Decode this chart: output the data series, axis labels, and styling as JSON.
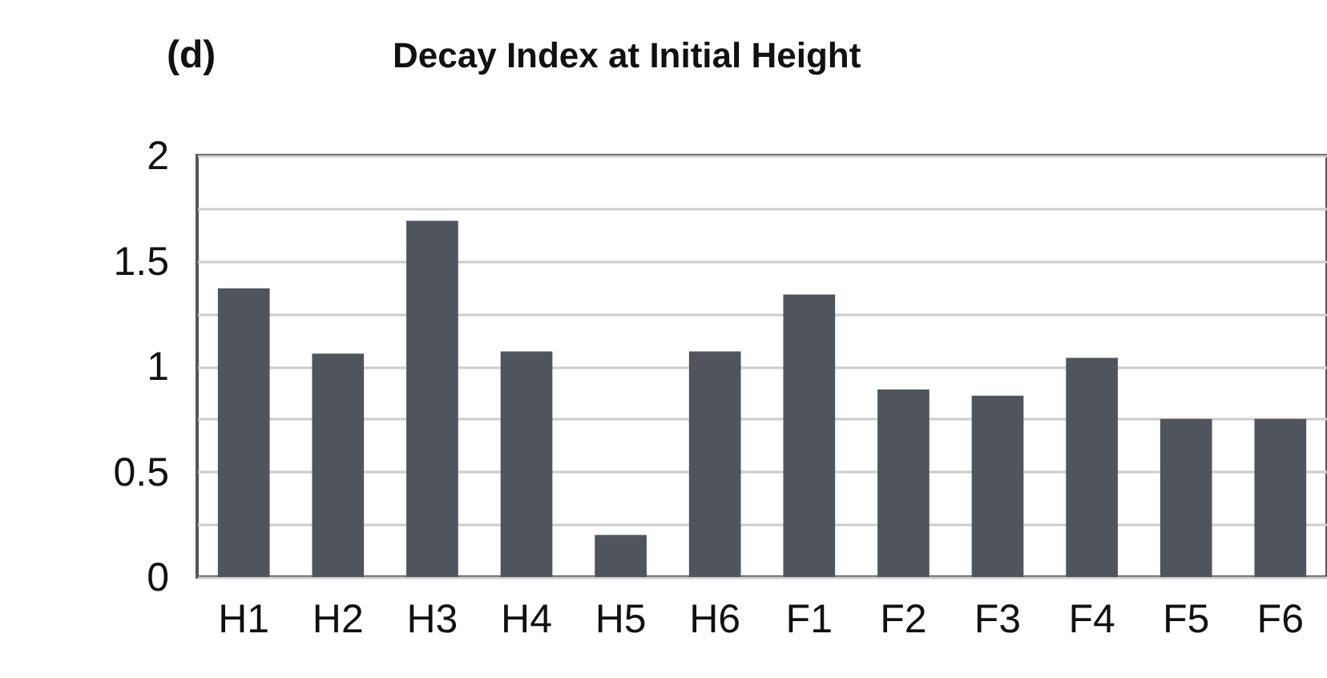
{
  "chart_data": {
    "type": "bar",
    "title": "Decay Index at Initial Height",
    "annotations": [
      "(d)"
    ],
    "categories": [
      "H1",
      "H2",
      "H3",
      "H4",
      "H5",
      "H6",
      "F1",
      "F2",
      "F3",
      "F4",
      "F5",
      "F6"
    ],
    "values": [
      1.37,
      1.06,
      1.69,
      1.07,
      0.2,
      1.07,
      1.34,
      0.89,
      0.86,
      1.04,
      0.75,
      0.75
    ],
    "color": "#50545c",
    "ylim": [
      0,
      2
    ],
    "yticks": [
      0,
      {
        "value": 0.25,
        "label": null
      },
      0.5,
      {
        "value": 0.75,
        "label": null
      },
      1,
      {
        "value": 1.25,
        "label": null
      },
      1.5,
      {
        "value": 1.75,
        "label": null
      },
      2
    ],
    "grid": "y"
  }
}
